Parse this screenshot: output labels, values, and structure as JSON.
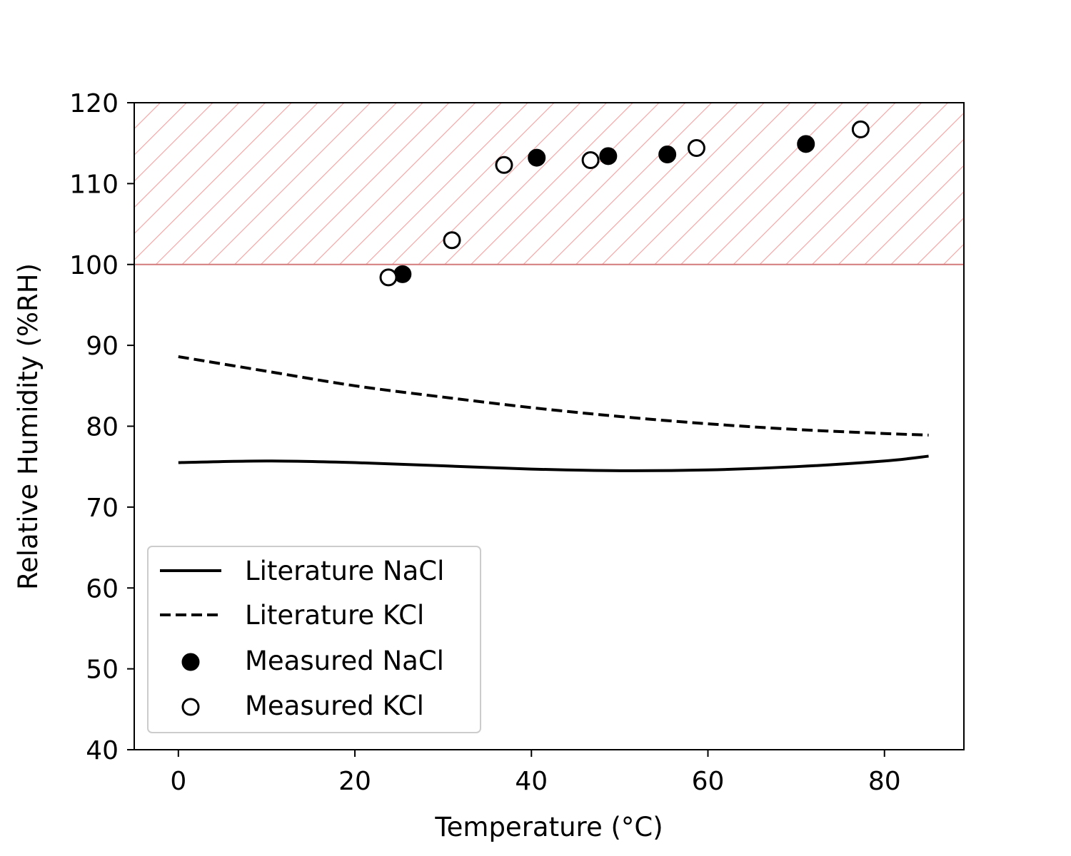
{
  "chart_data": {
    "type": "line",
    "xlabel": "Temperature (°C)",
    "ylabel": "Relative Humidity (%RH)",
    "xlim": [
      -5,
      89
    ],
    "ylim": [
      40,
      120
    ],
    "x_ticks": [
      0,
      20,
      40,
      60,
      80
    ],
    "y_ticks": [
      40,
      50,
      60,
      70,
      80,
      90,
      100,
      110,
      120
    ],
    "grid": false,
    "legend_position": "lower-left",
    "shaded_region": {
      "y_from": 100,
      "y_to": 120,
      "pattern": "diagonal-hatch",
      "color": "#f4a0a0",
      "edge_color": "#d47a7a"
    },
    "series": [
      {
        "name": "Literature NaCl",
        "kind": "line",
        "style": "solid",
        "color": "#000000",
        "x": [
          0,
          10,
          20,
          30,
          40,
          50,
          60,
          70,
          80,
          85
        ],
        "y": [
          75.5,
          75.7,
          75.5,
          75.1,
          74.7,
          74.5,
          74.6,
          75.0,
          75.7,
          76.3
        ]
      },
      {
        "name": "Literature KCl",
        "kind": "line",
        "style": "dashed",
        "color": "#000000",
        "x": [
          0,
          10,
          20,
          30,
          40,
          50,
          60,
          70,
          80,
          85
        ],
        "y": [
          88.6,
          86.8,
          85.0,
          83.6,
          82.3,
          81.2,
          80.3,
          79.6,
          79.1,
          78.9
        ]
      },
      {
        "name": "Measured NaCl",
        "kind": "scatter",
        "marker": "filled-circle",
        "color": "#000000",
        "x": [
          25.4,
          40.6,
          48.7,
          55.4,
          71.1
        ],
        "y": [
          98.8,
          113.2,
          113.4,
          113.6,
          114.9
        ]
      },
      {
        "name": "Measured KCl",
        "kind": "scatter",
        "marker": "open-circle",
        "color": "#000000",
        "x": [
          23.8,
          31.0,
          36.9,
          46.7,
          58.7,
          77.3
        ],
        "y": [
          98.4,
          103.0,
          112.3,
          112.9,
          114.4,
          116.7
        ]
      }
    ]
  }
}
